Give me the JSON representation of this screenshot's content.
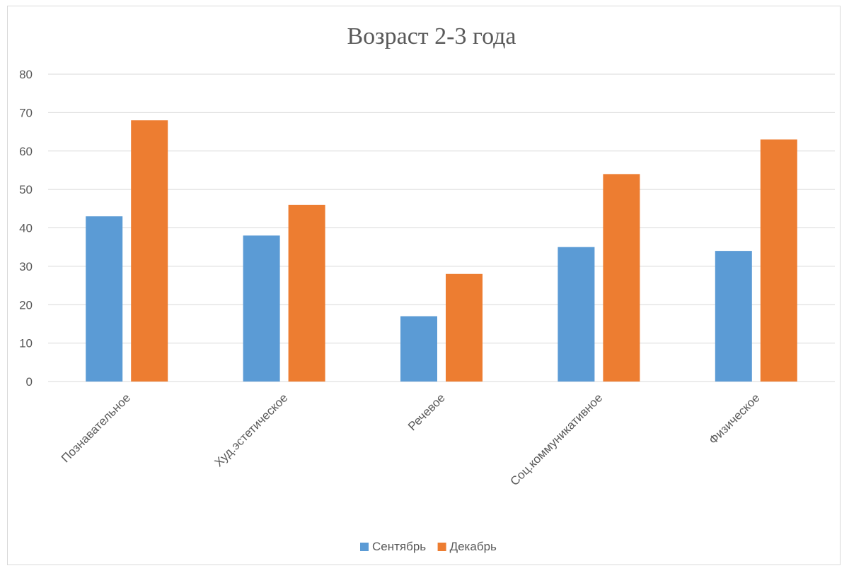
{
  "chart_data": {
    "type": "bar",
    "title": "Возраст 2-3 года",
    "categories": [
      "Познавательное",
      "Худ.эстетическое",
      "Речевое",
      "Соц.коммуникативное",
      "Физическое"
    ],
    "series": [
      {
        "name": "Сентябрь",
        "color": "#5b9bd5",
        "values": [
          43,
          38,
          17,
          35,
          34
        ]
      },
      {
        "name": "Декабрь",
        "color": "#ed7d31",
        "values": [
          68,
          46,
          28,
          54,
          63
        ]
      }
    ],
    "ylim": [
      0,
      80
    ],
    "yticks": [
      0,
      10,
      20,
      30,
      40,
      50,
      60,
      70,
      80
    ],
    "grid": true,
    "legend": "bottom"
  }
}
